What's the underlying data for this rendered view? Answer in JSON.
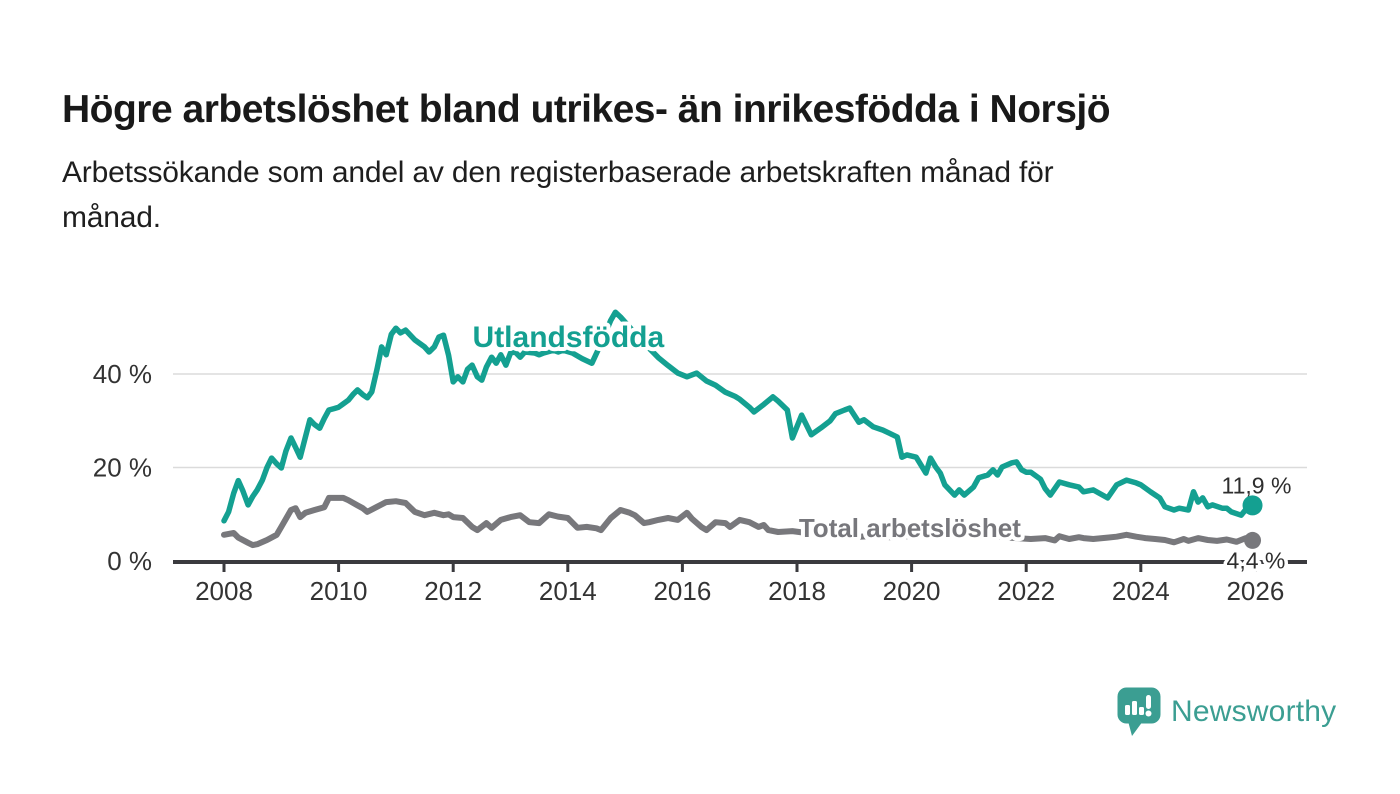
{
  "header": {
    "title": "Högre arbetslöshet bland utrikes- än inrikesfödda i Norsjö",
    "subtitle_lines": [
      "Arbetssökande som andel av den registerbaserade arbetskraften månad för",
      "månad."
    ]
  },
  "footer": {
    "brand": "Newsworthy"
  },
  "colors": {
    "teal": "#14A091",
    "gray": "#78787C",
    "gray_label": "#77777C",
    "axis": "#3A3A3E",
    "grid": "#DBDBDB",
    "tick_text": "#333333",
    "value_text": "#2E2E2E",
    "logo_teal": "#3B9E92",
    "title_text": "#191919"
  },
  "chart_data": {
    "type": "line",
    "title": "Högre arbetslöshet bland utrikes- än inrikesfödda i Norsjö",
    "subtitle": "Arbetssökande som andel av den registerbaserade arbetskraften månad för månad.",
    "unit": "%",
    "xlabel": "",
    "ylabel": "",
    "xlim": [
      2007.1,
      2026.9
    ],
    "ylim": [
      0,
      55
    ],
    "grid": "horizontal",
    "legend_position": "inline-labels",
    "x_ticks": [
      {
        "value": 2008,
        "label": "2008"
      },
      {
        "value": 2010,
        "label": "2010"
      },
      {
        "value": 2012,
        "label": "2012"
      },
      {
        "value": 2014,
        "label": "2014"
      },
      {
        "value": 2016,
        "label": "2016"
      },
      {
        "value": 2018,
        "label": "2018"
      },
      {
        "value": 2020,
        "label": "2020"
      },
      {
        "value": 2022,
        "label": "2022"
      },
      {
        "value": 2024,
        "label": "2024"
      },
      {
        "value": 2026,
        "label": "2026"
      }
    ],
    "y_ticks": [
      {
        "value": 0,
        "label": "0 %"
      },
      {
        "value": 20,
        "label": "20 %"
      },
      {
        "value": 40,
        "label": "40 %"
      }
    ],
    "series": [
      {
        "name": "Utlandsfödda",
        "label_text": "Utlandsfödda",
        "color": "#14A091",
        "label_at": [
          2014.01,
          47.9
        ],
        "end_label": "11,9 %",
        "end_value": 11.9,
        "end_label_position": "above",
        "points": [
          [
            2008.0,
            8.6
          ],
          [
            2008.08,
            10.5
          ],
          [
            2008.17,
            14.5
          ],
          [
            2008.25,
            17.2
          ],
          [
            2008.33,
            15.0
          ],
          [
            2008.42,
            12.0
          ],
          [
            2008.5,
            13.8
          ],
          [
            2008.58,
            15.2
          ],
          [
            2008.67,
            17.3
          ],
          [
            2008.75,
            20.0
          ],
          [
            2008.83,
            22.0
          ],
          [
            2008.92,
            20.8
          ],
          [
            2009.0,
            19.9
          ],
          [
            2009.08,
            23.5
          ],
          [
            2009.17,
            26.3
          ],
          [
            2009.25,
            24.3
          ],
          [
            2009.33,
            22.2
          ],
          [
            2009.42,
            26.5
          ],
          [
            2009.5,
            30.2
          ],
          [
            2009.58,
            29.2
          ],
          [
            2009.67,
            28.4
          ],
          [
            2009.75,
            30.5
          ],
          [
            2009.83,
            32.3
          ],
          [
            2009.92,
            32.6
          ],
          [
            2010.0,
            32.9
          ],
          [
            2010.08,
            33.6
          ],
          [
            2010.17,
            34.4
          ],
          [
            2010.25,
            35.6
          ],
          [
            2010.33,
            36.6
          ],
          [
            2010.42,
            35.6
          ],
          [
            2010.5,
            34.9
          ],
          [
            2010.58,
            36.2
          ],
          [
            2010.67,
            41.0
          ],
          [
            2010.75,
            45.8
          ],
          [
            2010.83,
            44.1
          ],
          [
            2010.92,
            48.5
          ],
          [
            2011.0,
            49.8
          ],
          [
            2011.08,
            48.8
          ],
          [
            2011.17,
            49.4
          ],
          [
            2011.33,
            47.3
          ],
          [
            2011.5,
            45.8
          ],
          [
            2011.58,
            44.7
          ],
          [
            2011.67,
            45.8
          ],
          [
            2011.75,
            47.9
          ],
          [
            2011.83,
            48.3
          ],
          [
            2011.92,
            44.0
          ],
          [
            2012.0,
            38.3
          ],
          [
            2012.08,
            39.4
          ],
          [
            2012.17,
            38.3
          ],
          [
            2012.25,
            41.0
          ],
          [
            2012.33,
            41.9
          ],
          [
            2012.42,
            39.4
          ],
          [
            2012.5,
            38.7
          ],
          [
            2012.58,
            41.5
          ],
          [
            2012.67,
            43.6
          ],
          [
            2012.75,
            42.3
          ],
          [
            2012.83,
            44.1
          ],
          [
            2012.92,
            41.9
          ],
          [
            2013.0,
            44.5
          ],
          [
            2013.08,
            44.7
          ],
          [
            2013.17,
            43.6
          ],
          [
            2013.25,
            44.7
          ],
          [
            2013.42,
            44.5
          ],
          [
            2013.5,
            44.1
          ],
          [
            2013.58,
            44.5
          ],
          [
            2013.75,
            45.1
          ],
          [
            2013.83,
            44.7
          ],
          [
            2013.92,
            45.1
          ],
          [
            2014.08,
            44.5
          ],
          [
            2014.25,
            43.3
          ],
          [
            2014.42,
            42.3
          ],
          [
            2014.58,
            46.5
          ],
          [
            2014.75,
            51.5
          ],
          [
            2014.83,
            53.2
          ],
          [
            2014.92,
            52.2
          ],
          [
            2015.08,
            50.0
          ],
          [
            2015.25,
            47.5
          ],
          [
            2015.42,
            45.5
          ],
          [
            2015.58,
            43.5
          ],
          [
            2015.75,
            41.8
          ],
          [
            2015.92,
            40.2
          ],
          [
            2016.08,
            39.4
          ],
          [
            2016.25,
            40.2
          ],
          [
            2016.42,
            38.5
          ],
          [
            2016.58,
            37.6
          ],
          [
            2016.75,
            36.1
          ],
          [
            2016.92,
            35.2
          ],
          [
            2017.0,
            34.6
          ],
          [
            2017.17,
            32.9
          ],
          [
            2017.25,
            31.9
          ],
          [
            2017.42,
            33.5
          ],
          [
            2017.58,
            35.1
          ],
          [
            2017.67,
            34.2
          ],
          [
            2017.83,
            32.3
          ],
          [
            2017.92,
            26.3
          ],
          [
            2018.08,
            31.2
          ],
          [
            2018.25,
            27.0
          ],
          [
            2018.42,
            28.5
          ],
          [
            2018.58,
            30.0
          ],
          [
            2018.67,
            31.5
          ],
          [
            2018.83,
            32.3
          ],
          [
            2018.92,
            32.7
          ],
          [
            2019.08,
            29.7
          ],
          [
            2019.17,
            30.2
          ],
          [
            2019.33,
            28.7
          ],
          [
            2019.5,
            28.0
          ],
          [
            2019.67,
            27.0
          ],
          [
            2019.75,
            26.5
          ],
          [
            2019.83,
            22.2
          ],
          [
            2019.92,
            22.7
          ],
          [
            2020.08,
            22.2
          ],
          [
            2020.25,
            18.8
          ],
          [
            2020.33,
            22.0
          ],
          [
            2020.42,
            20.1
          ],
          [
            2020.5,
            18.8
          ],
          [
            2020.58,
            16.3
          ],
          [
            2020.75,
            14.1
          ],
          [
            2020.83,
            15.2
          ],
          [
            2020.92,
            14.1
          ],
          [
            2021.08,
            15.8
          ],
          [
            2021.17,
            17.8
          ],
          [
            2021.33,
            18.4
          ],
          [
            2021.42,
            19.5
          ],
          [
            2021.5,
            18.4
          ],
          [
            2021.58,
            20.1
          ],
          [
            2021.75,
            21.0
          ],
          [
            2021.83,
            21.2
          ],
          [
            2021.92,
            19.5
          ],
          [
            2022.0,
            19.0
          ],
          [
            2022.08,
            19.0
          ],
          [
            2022.25,
            17.5
          ],
          [
            2022.33,
            15.5
          ],
          [
            2022.42,
            14.1
          ],
          [
            2022.58,
            16.9
          ],
          [
            2022.75,
            16.3
          ],
          [
            2022.92,
            15.8
          ],
          [
            2023.0,
            14.8
          ],
          [
            2023.17,
            15.2
          ],
          [
            2023.42,
            13.5
          ],
          [
            2023.58,
            16.3
          ],
          [
            2023.75,
            17.3
          ],
          [
            2023.92,
            16.7
          ],
          [
            2024.0,
            16.3
          ],
          [
            2024.17,
            14.8
          ],
          [
            2024.33,
            13.5
          ],
          [
            2024.42,
            11.6
          ],
          [
            2024.58,
            10.9
          ],
          [
            2024.67,
            11.3
          ],
          [
            2024.83,
            10.9
          ],
          [
            2024.92,
            14.8
          ],
          [
            2025.0,
            12.6
          ],
          [
            2025.08,
            13.5
          ],
          [
            2025.17,
            11.6
          ],
          [
            2025.25,
            12.0
          ],
          [
            2025.42,
            11.3
          ],
          [
            2025.5,
            11.3
          ],
          [
            2025.58,
            10.5
          ],
          [
            2025.75,
            9.8
          ],
          [
            2025.83,
            11.0
          ],
          [
            2025.95,
            11.9
          ]
        ]
      },
      {
        "name": "Total arbetslöshet",
        "label_text": "Total arbetslöshet",
        "color": "#78787C",
        "label_at": [
          2019.97,
          7.3
        ],
        "end_label": "4,4 %",
        "end_value": 4.4,
        "end_label_position": "below",
        "points": [
          [
            2008.0,
            5.6
          ],
          [
            2008.08,
            5.8
          ],
          [
            2008.17,
            6.0
          ],
          [
            2008.25,
            5.0
          ],
          [
            2008.42,
            3.9
          ],
          [
            2008.5,
            3.4
          ],
          [
            2008.58,
            3.6
          ],
          [
            2008.75,
            4.5
          ],
          [
            2008.92,
            5.6
          ],
          [
            2009.0,
            7.3
          ],
          [
            2009.08,
            9.0
          ],
          [
            2009.17,
            10.9
          ],
          [
            2009.25,
            11.3
          ],
          [
            2009.33,
            9.4
          ],
          [
            2009.42,
            10.3
          ],
          [
            2009.58,
            10.9
          ],
          [
            2009.75,
            11.5
          ],
          [
            2009.83,
            13.5
          ],
          [
            2010.0,
            13.5
          ],
          [
            2010.08,
            13.5
          ],
          [
            2010.17,
            13.0
          ],
          [
            2010.33,
            11.9
          ],
          [
            2010.42,
            11.3
          ],
          [
            2010.5,
            10.5
          ],
          [
            2010.67,
            11.6
          ],
          [
            2010.83,
            12.6
          ],
          [
            2011.0,
            12.8
          ],
          [
            2011.17,
            12.4
          ],
          [
            2011.33,
            10.5
          ],
          [
            2011.5,
            9.8
          ],
          [
            2011.67,
            10.3
          ],
          [
            2011.83,
            9.8
          ],
          [
            2011.92,
            10.0
          ],
          [
            2012.0,
            9.4
          ],
          [
            2012.17,
            9.2
          ],
          [
            2012.33,
            7.3
          ],
          [
            2012.42,
            6.6
          ],
          [
            2012.58,
            8.1
          ],
          [
            2012.67,
            7.1
          ],
          [
            2012.83,
            8.8
          ],
          [
            2013.0,
            9.4
          ],
          [
            2013.17,
            9.8
          ],
          [
            2013.33,
            8.3
          ],
          [
            2013.5,
            8.1
          ],
          [
            2013.67,
            10.0
          ],
          [
            2013.83,
            9.5
          ],
          [
            2014.0,
            9.2
          ],
          [
            2014.17,
            7.1
          ],
          [
            2014.33,
            7.3
          ],
          [
            2014.5,
            7.0
          ],
          [
            2014.58,
            6.6
          ],
          [
            2014.75,
            9.2
          ],
          [
            2014.92,
            10.9
          ],
          [
            2015.08,
            10.3
          ],
          [
            2015.17,
            9.8
          ],
          [
            2015.33,
            8.1
          ],
          [
            2015.42,
            8.3
          ],
          [
            2015.58,
            8.8
          ],
          [
            2015.75,
            9.2
          ],
          [
            2015.92,
            8.8
          ],
          [
            2016.08,
            10.3
          ],
          [
            2016.17,
            9.0
          ],
          [
            2016.33,
            7.3
          ],
          [
            2016.42,
            6.6
          ],
          [
            2016.58,
            8.3
          ],
          [
            2016.75,
            8.1
          ],
          [
            2016.83,
            7.3
          ],
          [
            2017.0,
            8.8
          ],
          [
            2017.17,
            8.3
          ],
          [
            2017.33,
            7.3
          ],
          [
            2017.42,
            7.7
          ],
          [
            2017.5,
            6.6
          ],
          [
            2017.67,
            6.2
          ],
          [
            2017.92,
            6.4
          ],
          [
            2018.17,
            6.0
          ],
          [
            2018.5,
            5.6
          ],
          [
            2018.83,
            5.4
          ],
          [
            2019.08,
            5.2
          ],
          [
            2019.42,
            5.4
          ],
          [
            2019.67,
            5.0
          ],
          [
            2020.0,
            5.4
          ],
          [
            2020.33,
            6.0
          ],
          [
            2020.58,
            6.2
          ],
          [
            2020.92,
            5.8
          ],
          [
            2021.17,
            5.4
          ],
          [
            2021.5,
            5.2
          ],
          [
            2021.83,
            4.9
          ],
          [
            2022.08,
            4.7
          ],
          [
            2022.33,
            4.9
          ],
          [
            2022.5,
            4.4
          ],
          [
            2022.58,
            5.3
          ],
          [
            2022.75,
            4.7
          ],
          [
            2022.92,
            5.1
          ],
          [
            2023.0,
            4.9
          ],
          [
            2023.17,
            4.7
          ],
          [
            2023.42,
            5.0
          ],
          [
            2023.58,
            5.2
          ],
          [
            2023.75,
            5.6
          ],
          [
            2023.92,
            5.2
          ],
          [
            2024.08,
            4.9
          ],
          [
            2024.25,
            4.7
          ],
          [
            2024.42,
            4.5
          ],
          [
            2024.58,
            4.0
          ],
          [
            2024.75,
            4.7
          ],
          [
            2024.83,
            4.3
          ],
          [
            2025.0,
            4.9
          ],
          [
            2025.17,
            4.5
          ],
          [
            2025.33,
            4.3
          ],
          [
            2025.5,
            4.6
          ],
          [
            2025.67,
            4.1
          ],
          [
            2025.83,
            4.9
          ],
          [
            2025.95,
            4.4
          ]
        ]
      }
    ]
  }
}
